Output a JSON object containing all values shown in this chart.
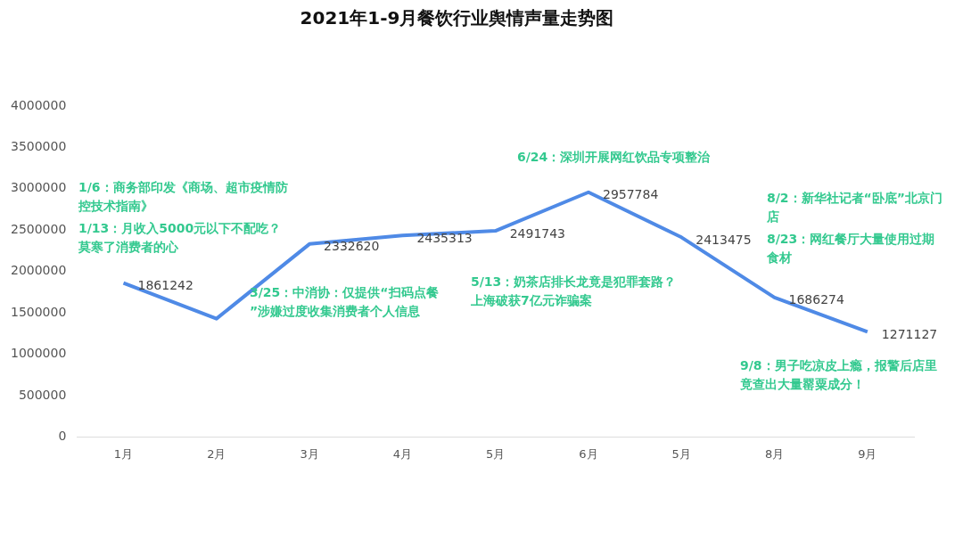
{
  "chart_data": {
    "type": "line",
    "title": "2021年1-9月餐饮行业舆情声量走势图",
    "categories": [
      "1月",
      "2月",
      "3月",
      "4月",
      "5月",
      "6月",
      "5月",
      "8月",
      "9月"
    ],
    "series": [
      {
        "color": "#4f8ae6",
        "values": [
          1861242,
          1430000,
          2332620,
          2435313,
          2491743,
          2957784,
          2413475,
          1686274,
          1271127
        ],
        "value_labels": [
          "1861242",
          null,
          "2332620",
          "2435313",
          "2491743",
          "2957784",
          "2413475",
          "1686274",
          "1271127"
        ]
      }
    ],
    "ylim": [
      0,
      4000000
    ],
    "yticks": [
      0,
      500000,
      1000000,
      1500000,
      2000000,
      2500000,
      3000000,
      3500000,
      4000000
    ],
    "grid": false,
    "legend": false,
    "annotations": [
      "1/6：商务部印发《商场、超市疫情防控技术指南》",
      "1/13：月收入5000元以下不配吃？莫寒了消费者的心",
      "3/25：中消协：仅提供“扫码点餐”涉嫌过度收集消费者个人信息",
      "5/13：奶茶店排长龙竟是犯罪套路？上海破获7亿元诈骗案",
      "6/24：深圳开展网红饮品专项整治",
      "8/2：新华社记者“卧底”北京门店",
      "8/23：网红餐厅大量使用过期食材",
      "9/8：男子吃凉皮上瘾，报警后店里竟查出大量罂粟成分！"
    ]
  }
}
